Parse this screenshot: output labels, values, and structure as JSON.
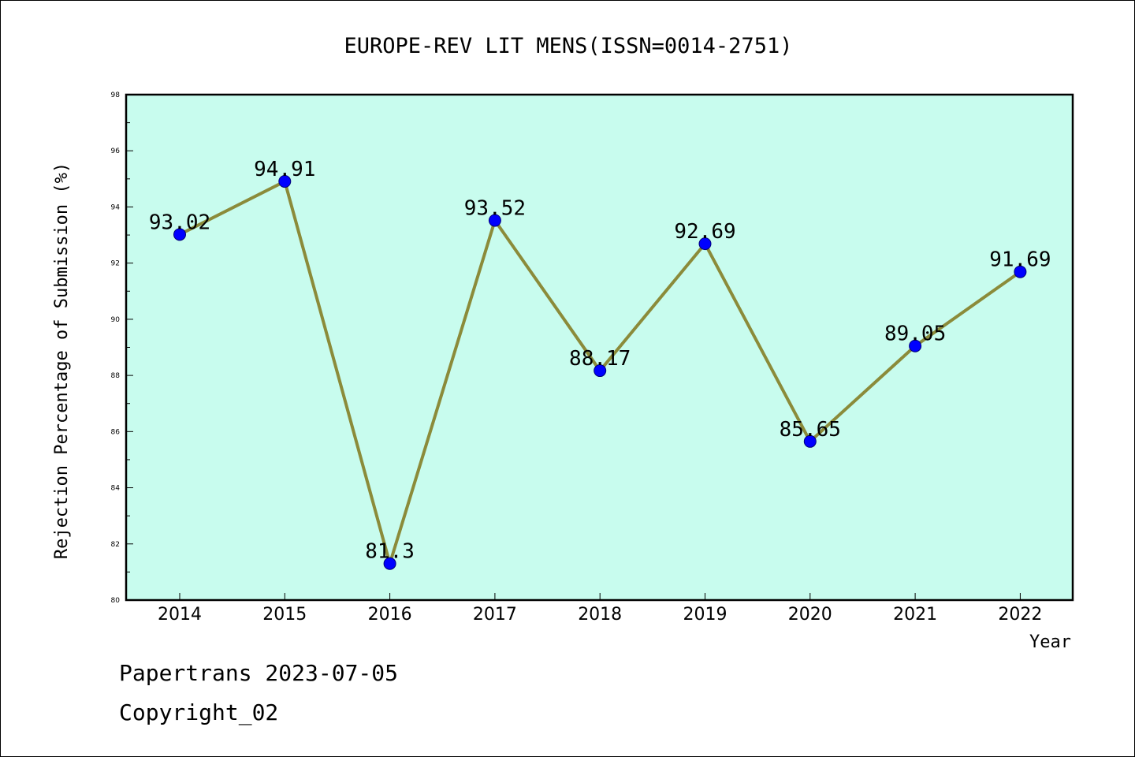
{
  "chart_data": {
    "type": "line",
    "title": "EUROPE-REV LIT MENS(ISSN=0014-2751)",
    "xlabel": "Year",
    "ylabel": "Rejection Percentage of Submission (%)",
    "categories": [
      "2014",
      "2015",
      "2016",
      "2017",
      "2018",
      "2019",
      "2020",
      "2021",
      "2022"
    ],
    "values": [
      93.02,
      94.91,
      81.3,
      93.52,
      88.17,
      92.69,
      85.65,
      89.05,
      91.69
    ],
    "data_labels": [
      "93.02",
      "94.91",
      "81.3",
      "93.52",
      "88.17",
      "92.69",
      "85.65",
      "89.05",
      "91.69"
    ],
    "ylim": [
      80,
      98
    ],
    "yticks": [
      80,
      82,
      84,
      86,
      88,
      90,
      92,
      94,
      96,
      98
    ],
    "ytick_labels": [
      "80",
      "82",
      "84",
      "86",
      "88",
      "90",
      "92",
      "94",
      "96",
      "98"
    ],
    "grid": false,
    "colors": {
      "line": "#8b8b3a",
      "marker": "#0000ff",
      "plot_background": "#c8fcee",
      "figure_background": "#ffffff"
    }
  },
  "footer": {
    "line1": "Papertrans 2023-07-05",
    "line2": "Copyright_02"
  }
}
